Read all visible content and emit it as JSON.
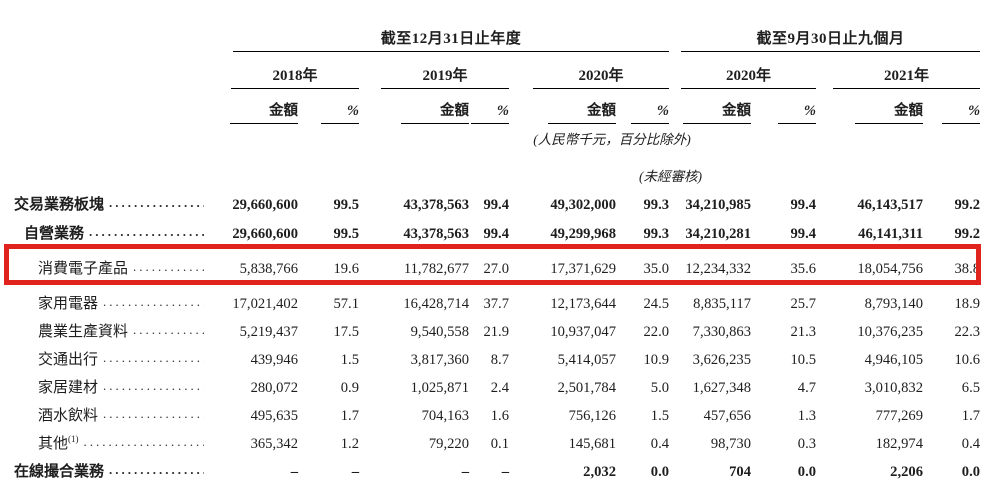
{
  "table": {
    "group_headers": [
      "截至12月31日止年度",
      "截至9月30日止九個月"
    ],
    "year_headers": [
      "2018年",
      "2019年",
      "2020年",
      "2020年",
      "2021年"
    ],
    "sub_headers": {
      "amount": "金額",
      "percent": "%"
    },
    "notes": {
      "units": "(人民幣千元，百分比除外)",
      "unaudited": "(未經審核)"
    },
    "rows": [
      {
        "label": "交易業務板塊",
        "indent": 0,
        "bold": true,
        "highlight": false,
        "values": [
          "29,660,600",
          "99.5",
          "43,378,563",
          "99.4",
          "49,302,000",
          "99.3",
          "34,210,985",
          "99.4",
          "46,143,517",
          "99.2"
        ]
      },
      {
        "label": "自營業務",
        "indent": 1,
        "bold": true,
        "highlight": false,
        "values": [
          "29,660,600",
          "99.5",
          "43,378,563",
          "99.4",
          "49,299,968",
          "99.3",
          "34,210,281",
          "99.4",
          "46,141,311",
          "99.2"
        ]
      },
      {
        "label": "消費電子產品",
        "indent": 2,
        "bold": false,
        "highlight": true,
        "values": [
          "5,838,766",
          "19.6",
          "11,782,677",
          "27.0",
          "17,371,629",
          "35.0",
          "12,234,332",
          "35.6",
          "18,054,756",
          "38.8"
        ]
      },
      {
        "label": "家用電器",
        "indent": 2,
        "bold": false,
        "highlight": false,
        "values": [
          "17,021,402",
          "57.1",
          "16,428,714",
          "37.7",
          "12,173,644",
          "24.5",
          "8,835,117",
          "25.7",
          "8,793,140",
          "18.9"
        ]
      },
      {
        "label": "農業生產資料",
        "indent": 2,
        "bold": false,
        "highlight": false,
        "values": [
          "5,219,437",
          "17.5",
          "9,540,558",
          "21.9",
          "10,937,047",
          "22.0",
          "7,330,863",
          "21.3",
          "10,376,235",
          "22.3"
        ]
      },
      {
        "label": "交通出行",
        "indent": 2,
        "bold": false,
        "highlight": false,
        "values": [
          "439,946",
          "1.5",
          "3,817,360",
          "8.7",
          "5,414,057",
          "10.9",
          "3,626,235",
          "10.5",
          "4,946,105",
          "10.6"
        ]
      },
      {
        "label": "家居建材",
        "indent": 2,
        "bold": false,
        "highlight": false,
        "values": [
          "280,072",
          "0.9",
          "1,025,871",
          "2.4",
          "2,501,784",
          "5.0",
          "1,627,348",
          "4.7",
          "3,010,832",
          "6.5"
        ]
      },
      {
        "label": "酒水飲料",
        "indent": 2,
        "bold": false,
        "highlight": false,
        "values": [
          "495,635",
          "1.7",
          "704,163",
          "1.6",
          "756,126",
          "1.5",
          "457,656",
          "1.3",
          "777,269",
          "1.7"
        ]
      },
      {
        "label": "其他",
        "sup": "(1)",
        "indent": 2,
        "bold": false,
        "highlight": false,
        "values": [
          "365,342",
          "1.2",
          "79,220",
          "0.1",
          "145,681",
          "0.4",
          "98,730",
          "0.3",
          "182,974",
          "0.4"
        ]
      },
      {
        "label": "在線撮合業務",
        "indent": 0,
        "bold": true,
        "highlight": false,
        "values": [
          "–",
          "–",
          "–",
          "–",
          "2,032",
          "0.0",
          "704",
          "0.0",
          "2,206",
          "0.0"
        ]
      }
    ],
    "colors": {
      "highlight_border": "#e0241d",
      "text": "#1e1e1e",
      "rule": "#000000"
    }
  }
}
